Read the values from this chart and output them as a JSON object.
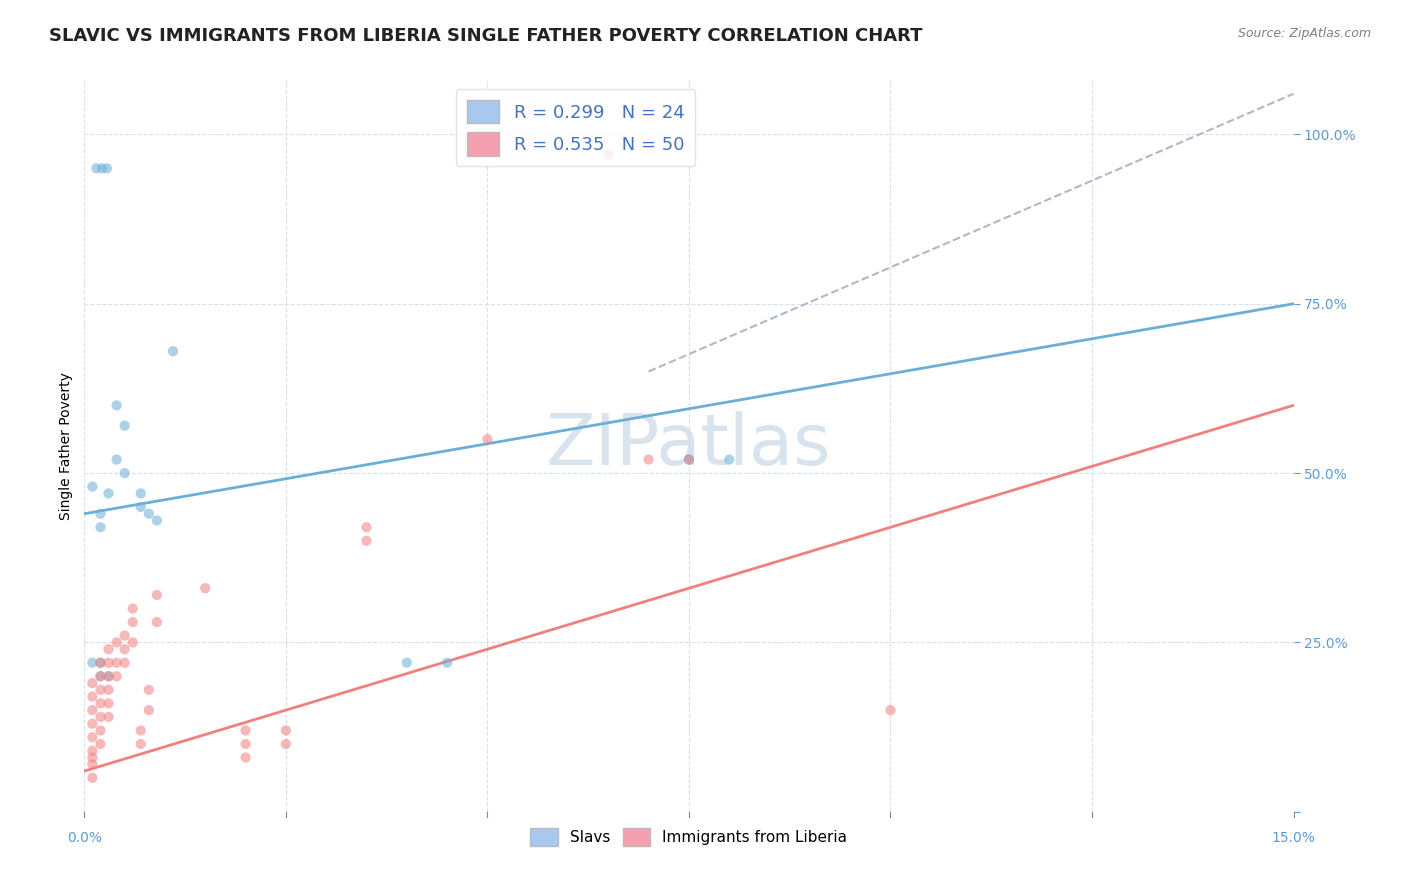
{
  "title": "SLAVIC VS IMMIGRANTS FROM LIBERIA SINGLE FATHER POVERTY CORRELATION CHART",
  "source": "Source: ZipAtlas.com",
  "ylabel": "Single Father Poverty",
  "xlim": [
    0,
    0.15
  ],
  "ylim": [
    0.0,
    1.08
  ],
  "yticks": [
    0.0,
    0.25,
    0.5,
    0.75,
    1.0
  ],
  "ytick_labels": [
    "",
    "25.0%",
    "50.0%",
    "75.0%",
    "100.0%"
  ],
  "slavs_scatter": [
    [
      0.0015,
      0.95
    ],
    [
      0.0022,
      0.95
    ],
    [
      0.0028,
      0.95
    ],
    [
      0.011,
      0.68
    ],
    [
      0.004,
      0.6
    ],
    [
      0.005,
      0.57
    ],
    [
      0.004,
      0.52
    ],
    [
      0.005,
      0.5
    ],
    [
      0.007,
      0.47
    ],
    [
      0.007,
      0.45
    ],
    [
      0.008,
      0.44
    ],
    [
      0.009,
      0.43
    ],
    [
      0.003,
      0.47
    ],
    [
      0.001,
      0.48
    ],
    [
      0.002,
      0.44
    ],
    [
      0.002,
      0.42
    ],
    [
      0.001,
      0.22
    ],
    [
      0.002,
      0.22
    ],
    [
      0.002,
      0.2
    ],
    [
      0.003,
      0.2
    ],
    [
      0.04,
      0.22
    ],
    [
      0.045,
      0.22
    ],
    [
      0.075,
      0.52
    ],
    [
      0.08,
      0.52
    ]
  ],
  "liberia_scatter": [
    [
      0.001,
      0.05
    ],
    [
      0.001,
      0.07
    ],
    [
      0.001,
      0.08
    ],
    [
      0.001,
      0.09
    ],
    [
      0.001,
      0.11
    ],
    [
      0.001,
      0.13
    ],
    [
      0.001,
      0.15
    ],
    [
      0.001,
      0.17
    ],
    [
      0.001,
      0.19
    ],
    [
      0.002,
      0.1
    ],
    [
      0.002,
      0.12
    ],
    [
      0.002,
      0.14
    ],
    [
      0.002,
      0.16
    ],
    [
      0.002,
      0.18
    ],
    [
      0.002,
      0.2
    ],
    [
      0.002,
      0.22
    ],
    [
      0.003,
      0.14
    ],
    [
      0.003,
      0.16
    ],
    [
      0.003,
      0.18
    ],
    [
      0.003,
      0.2
    ],
    [
      0.003,
      0.22
    ],
    [
      0.003,
      0.24
    ],
    [
      0.004,
      0.2
    ],
    [
      0.004,
      0.22
    ],
    [
      0.004,
      0.25
    ],
    [
      0.005,
      0.22
    ],
    [
      0.005,
      0.24
    ],
    [
      0.005,
      0.26
    ],
    [
      0.006,
      0.25
    ],
    [
      0.006,
      0.28
    ],
    [
      0.006,
      0.3
    ],
    [
      0.007,
      0.1
    ],
    [
      0.007,
      0.12
    ],
    [
      0.008,
      0.15
    ],
    [
      0.008,
      0.18
    ],
    [
      0.009,
      0.28
    ],
    [
      0.009,
      0.32
    ],
    [
      0.015,
      0.33
    ],
    [
      0.02,
      0.08
    ],
    [
      0.02,
      0.1
    ],
    [
      0.02,
      0.12
    ],
    [
      0.025,
      0.12
    ],
    [
      0.025,
      0.1
    ],
    [
      0.035,
      0.4
    ],
    [
      0.035,
      0.42
    ],
    [
      0.05,
      0.55
    ],
    [
      0.065,
      0.97
    ],
    [
      0.07,
      0.52
    ],
    [
      0.075,
      0.52
    ],
    [
      0.1,
      0.15
    ]
  ],
  "slavs_color": "#6baed6",
  "liberia_color": "#f08080",
  "slavs_line": {
    "x0": 0.0,
    "y0": 0.44,
    "x1": 0.15,
    "y1": 0.75
  },
  "liberia_line": {
    "x0": 0.0,
    "y0": 0.06,
    "x1": 0.15,
    "y1": 0.6
  },
  "diagonal_line": {
    "x0": 0.07,
    "y0": 0.65,
    "x1": 0.15,
    "y1": 1.06
  },
  "diagonal_color": "#b0b8c8",
  "watermark_text": "ZIPatlas",
  "watermark_color": "#c8d8e8",
  "background_color": "#ffffff",
  "grid_color": "#d8e0ec",
  "scatter_size": 55,
  "scatter_alpha": 0.55,
  "title_fontsize": 13,
  "tick_fontsize": 10,
  "legend_fontsize": 13,
  "legend1_labels": [
    "R = 0.299   N = 24",
    "R = 0.535   N = 50"
  ],
  "legend1_colors": [
    "#a8c8f0",
    "#f4a0b0"
  ],
  "legend2_labels": [
    "Slavs",
    "Immigrants from Liberia"
  ],
  "legend2_colors": [
    "#a8c8f0",
    "#f4a0b0"
  ]
}
